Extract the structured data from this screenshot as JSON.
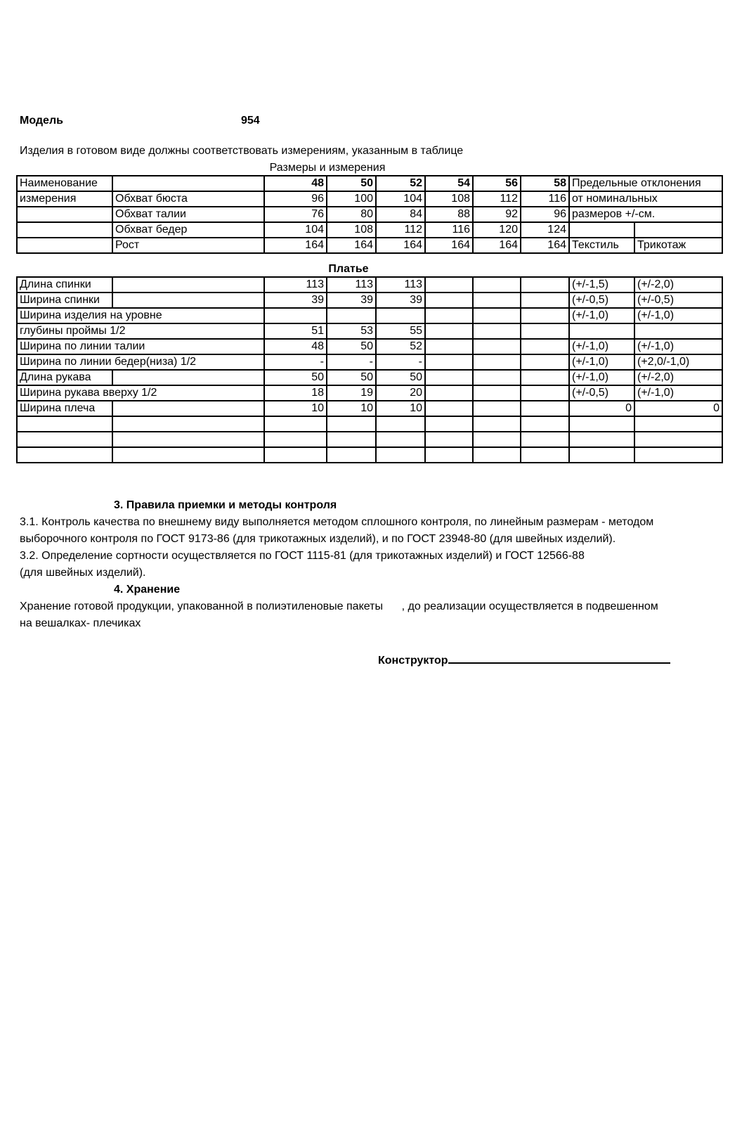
{
  "header": {
    "model_label": "Модель",
    "model_number": "954"
  },
  "intro": "Изделия в готовом виде должны соответствовать измерениям, указанным в таблице",
  "table_caption": "Размеры и измерения",
  "sizes_table": {
    "rows": [
      {
        "c0": "Наименование",
        "c1": "",
        "vals": [
          "48",
          "50",
          "52",
          "54",
          "56",
          "58"
        ],
        "dev": "Предельные отклонения",
        "bold": true
      },
      {
        "c0": "измерения",
        "c1": "Обхват бюста",
        "vals": [
          "96",
          "100",
          "104",
          "108",
          "112",
          "116"
        ],
        "dev": "от номинальных"
      },
      {
        "c0": "",
        "c1": "Обхват талии",
        "vals": [
          "76",
          "80",
          "84",
          "88",
          "92",
          "96"
        ],
        "dev": "размеров +/-см."
      },
      {
        "c0": "",
        "c1": "Обхват бедер",
        "vals": [
          "104",
          "108",
          "112",
          "116",
          "120",
          "124"
        ],
        "dev_split": [
          "",
          ""
        ]
      },
      {
        "c0": "",
        "c1": "Рост",
        "vals": [
          "164",
          "164",
          "164",
          "164",
          "164",
          "164"
        ],
        "dev_split": [
          "Текстиль",
          "Трикотаж"
        ]
      }
    ]
  },
  "section_caption": "Платье",
  "dress_table": {
    "rows": [
      {
        "label": "Длина спинки",
        "split": true,
        "vals": [
          "113",
          "113",
          "113",
          "",
          "",
          ""
        ],
        "textile": "(+/-1,5)",
        "knit": "(+/-2,0)"
      },
      {
        "label": "Ширина спинки",
        "split": true,
        "vals": [
          "39",
          "39",
          "39",
          "",
          "",
          ""
        ],
        "textile": "(+/-0,5)",
        "knit": "(+/-0,5)"
      },
      {
        "label": "Ширина изделия на уровне",
        "split": false,
        "vals": [
          "",
          "",
          "",
          "",
          "",
          ""
        ],
        "textile": "(+/-1,0)",
        "knit": "(+/-1,0)"
      },
      {
        "label": "глубины проймы 1/2",
        "split": false,
        "vals": [
          "51",
          "53",
          "55",
          "",
          "",
          ""
        ],
        "textile": "",
        "knit": ""
      },
      {
        "label": "Ширина по линии талии",
        "split": false,
        "vals": [
          "48",
          "50",
          "52",
          "",
          "",
          ""
        ],
        "textile": "(+/-1,0)",
        "knit": "(+/-1,0)"
      },
      {
        "label": "Ширина по линии бедер(низа) 1/2",
        "split": false,
        "vals": [
          "-",
          "-",
          "-",
          "",
          "",
          ""
        ],
        "textile": "(+/-1,0)",
        "knit": "(+2,0/-1,0)"
      },
      {
        "label": "Длина рукава",
        "split": true,
        "vals": [
          "50",
          "50",
          "50",
          "",
          "",
          ""
        ],
        "textile": "(+/-1,0)",
        "knit": "(+/-2,0)"
      },
      {
        "label": "Ширина рукава вверху 1/2",
        "split": false,
        "vals": [
          "18",
          "19",
          "20",
          "",
          "",
          ""
        ],
        "textile": "(+/-0,5)",
        "knit": "(+/-1,0)"
      },
      {
        "label": "Ширина плеча",
        "split": true,
        "vals": [
          "10",
          "10",
          "10",
          "",
          "",
          ""
        ],
        "textile": "0",
        "knit": "0"
      },
      {
        "label": "",
        "split": true,
        "vals": [
          "",
          "",
          "",
          "",
          "",
          ""
        ],
        "textile": "",
        "knit": ""
      },
      {
        "label": "",
        "split": true,
        "vals": [
          "",
          "",
          "",
          "",
          "",
          ""
        ],
        "textile": "",
        "knit": ""
      },
      {
        "label": "",
        "split": true,
        "vals": [
          "",
          "",
          "",
          "",
          "",
          ""
        ],
        "textile": "",
        "knit": ""
      }
    ]
  },
  "section3": {
    "title": "3. Правила приемки и методы контроля",
    "lines": [
      "3.1. Контроль качества по внешнему виду выполняется методом сплошного контроля, по линейным размерам - методом",
      "выборочного контроля по ГОСТ 9173-86 (для трикотажных изделий), и по ГОСТ 23948-80 (для швейных изделий).",
      "3.2. Определение сортности осуществляется по ГОСТ 1115-81 (для трикотажных изделий) и ГОСТ 12566-88",
      "(для швейных изделий)."
    ]
  },
  "section4": {
    "title": "4. Хранение",
    "lines": [
      "Хранение готовой продукции, упакованной в полиэтиленовые пакеты      , до реализации осуществляется в подвешенном",
      "на вешалках- плечиках"
    ]
  },
  "signature": {
    "label": "Конструктор"
  }
}
